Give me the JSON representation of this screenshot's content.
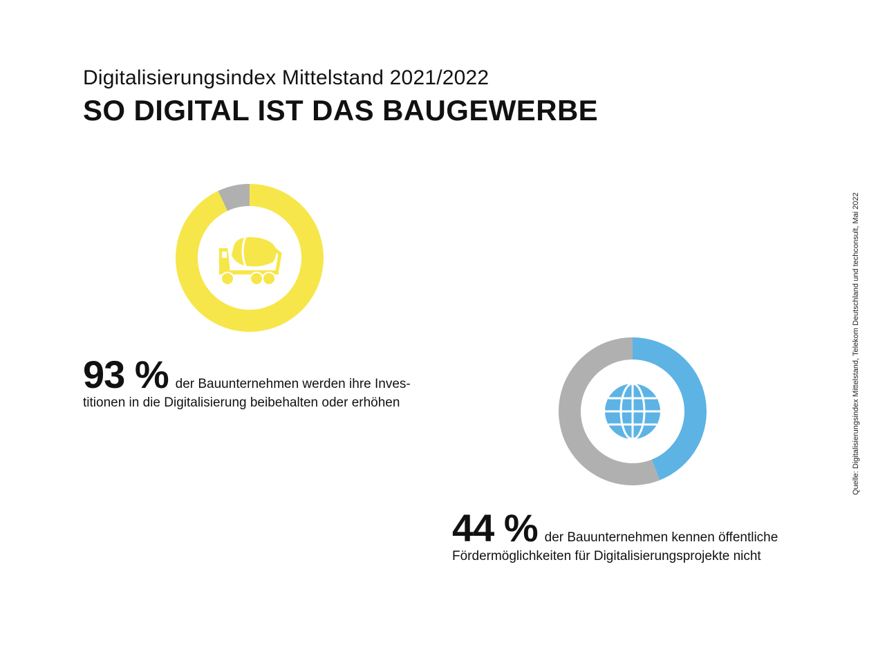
{
  "header": {
    "subtitle": "Digitalisierungsindex Mittelstand 2021/2022",
    "title": "SO DIGITAL IST DAS BAUGEWERBE"
  },
  "source": "Quelle: Digitalisierungsindex Mittelstand, Telekom Deutschland und techconsult, Mai 2022",
  "chart_data": [
    {
      "type": "pie",
      "values": [
        93,
        7
      ],
      "colors": [
        "#f7e64a",
        "#b0b0b0"
      ],
      "icon": "concrete-mixer-truck-icon",
      "value_label": "93 %",
      "text_line1": "der Bauunternehmen werden ihre Inves-",
      "text_line2": "titionen in die Digitalisierung beibehalten oder erhöhen"
    },
    {
      "type": "pie",
      "values": [
        44,
        56
      ],
      "colors": [
        "#5db3e4",
        "#b0b0b0"
      ],
      "icon": "globe-icon",
      "value_label": "44 %",
      "text_line1": "der Bauunternehmen kennen öffentliche",
      "text_line2": "Fördermöglichkeiten für Digitalisierungsprojekte nicht"
    }
  ]
}
